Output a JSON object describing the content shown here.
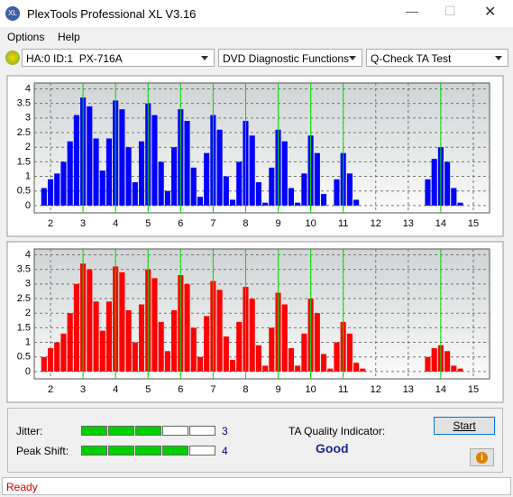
{
  "window": {
    "title": "PlexTools Professional XL V3.16"
  },
  "menu": [
    "Options",
    "Help"
  ],
  "toolbar": [
    "HA:0 ID:1  PX-716A",
    "DVD Diagnostic Functions",
    "Q-Check TA Test"
  ],
  "charts": [
    {
      "type": "bar",
      "color": "#0000ff",
      "marker_color": "#00e000",
      "x": [
        1.8,
        2.0,
        2.2,
        2.4,
        2.6,
        2.8,
        3.0,
        3.2,
        3.4,
        3.6,
        3.8,
        4.0,
        4.2,
        4.4,
        4.6,
        4.8,
        5.0,
        5.2,
        5.4,
        5.6,
        5.8,
        6.0,
        6.2,
        6.4,
        6.6,
        6.8,
        7.0,
        7.2,
        7.4,
        7.6,
        7.8,
        8.0,
        8.2,
        8.4,
        8.6,
        8.8,
        9.0,
        9.2,
        9.4,
        9.6,
        9.8,
        10.0,
        10.2,
        10.4,
        10.6,
        10.8,
        11.0,
        11.2,
        11.4,
        11.6,
        11.8,
        12.0,
        12.2,
        12.4,
        12.6,
        12.8,
        13.0,
        13.2,
        13.4,
        13.6,
        13.8,
        14.0,
        14.2,
        14.4,
        14.6,
        14.8
      ],
      "values": [
        0.6,
        0.9,
        1.1,
        1.5,
        2.2,
        3.1,
        3.7,
        3.4,
        2.3,
        1.2,
        2.3,
        3.6,
        3.3,
        2.0,
        0.8,
        2.2,
        3.5,
        3.1,
        1.5,
        0.5,
        2.0,
        3.3,
        2.9,
        1.3,
        0.3,
        1.8,
        3.1,
        2.6,
        1.0,
        0.2,
        1.5,
        2.9,
        2.4,
        0.8,
        0.1,
        1.3,
        2.6,
        2.2,
        0.6,
        0.1,
        1.1,
        2.4,
        1.8,
        0.4,
        0.0,
        0.9,
        1.8,
        1.1,
        0.2,
        0,
        0,
        0,
        0,
        0,
        0,
        0,
        0,
        0,
        0,
        0.9,
        1.6,
        2.0,
        1.5,
        0.6,
        0.1,
        0
      ],
      "markers": [
        3,
        4,
        5,
        6,
        7,
        8,
        9,
        10,
        11,
        14
      ],
      "xlim": [
        1.5,
        15.5
      ],
      "xticks": [
        2,
        3,
        4,
        5,
        6,
        7,
        8,
        9,
        10,
        11,
        12,
        13,
        14,
        15
      ],
      "ylim": [
        -0.25,
        4.2
      ],
      "yticks": [
        0,
        0.5,
        1,
        1.5,
        2,
        2.5,
        3,
        3.5,
        4
      ],
      "grid": true
    },
    {
      "type": "bar",
      "color": "#ff0000",
      "marker_color": "#00e000",
      "x": [
        1.8,
        2.0,
        2.2,
        2.4,
        2.6,
        2.8,
        3.0,
        3.2,
        3.4,
        3.6,
        3.8,
        4.0,
        4.2,
        4.4,
        4.6,
        4.8,
        5.0,
        5.2,
        5.4,
        5.6,
        5.8,
        6.0,
        6.2,
        6.4,
        6.6,
        6.8,
        7.0,
        7.2,
        7.4,
        7.6,
        7.8,
        8.0,
        8.2,
        8.4,
        8.6,
        8.8,
        9.0,
        9.2,
        9.4,
        9.6,
        9.8,
        10.0,
        10.2,
        10.4,
        10.6,
        10.8,
        11.0,
        11.2,
        11.4,
        11.6,
        11.8,
        12.0,
        12.2,
        12.4,
        12.6,
        12.8,
        13.0,
        13.2,
        13.4,
        13.6,
        13.8,
        14.0,
        14.2,
        14.4,
        14.6,
        14.8
      ],
      "values": [
        0.5,
        0.8,
        1.0,
        1.3,
        2.0,
        3.0,
        3.7,
        3.5,
        2.4,
        1.4,
        2.4,
        3.6,
        3.4,
        2.1,
        1.0,
        2.3,
        3.5,
        3.2,
        1.7,
        0.7,
        2.1,
        3.3,
        3.0,
        1.5,
        0.5,
        1.9,
        3.1,
        2.8,
        1.2,
        0.4,
        1.7,
        2.9,
        2.5,
        0.9,
        0.2,
        1.5,
        2.7,
        2.3,
        0.8,
        0.2,
        1.3,
        2.5,
        2.0,
        0.6,
        0.1,
        1.0,
        1.7,
        1.3,
        0.3,
        0.1,
        0,
        0,
        0,
        0,
        0,
        0,
        0,
        0,
        0,
        0.5,
        0.8,
        0.9,
        0.7,
        0.2,
        0.1,
        0
      ],
      "markers": [
        3,
        4,
        5,
        6,
        7,
        8,
        9,
        10,
        11,
        14
      ],
      "xlim": [
        1.5,
        15.5
      ],
      "xticks": [
        2,
        3,
        4,
        5,
        6,
        7,
        8,
        9,
        10,
        11,
        12,
        13,
        14,
        15
      ],
      "ylim": [
        -0.25,
        4.2
      ],
      "yticks": [
        0,
        0.5,
        1,
        1.5,
        2,
        2.5,
        3,
        3.5,
        4
      ],
      "grid": true
    }
  ],
  "results": {
    "jitter_label": "Jitter:",
    "jitter": 3,
    "peak_label": "Peak Shift:",
    "peak": 4,
    "ta_label": "TA Quality Indicator:",
    "ta_value": "Good",
    "start": "Start"
  },
  "status": "Ready"
}
